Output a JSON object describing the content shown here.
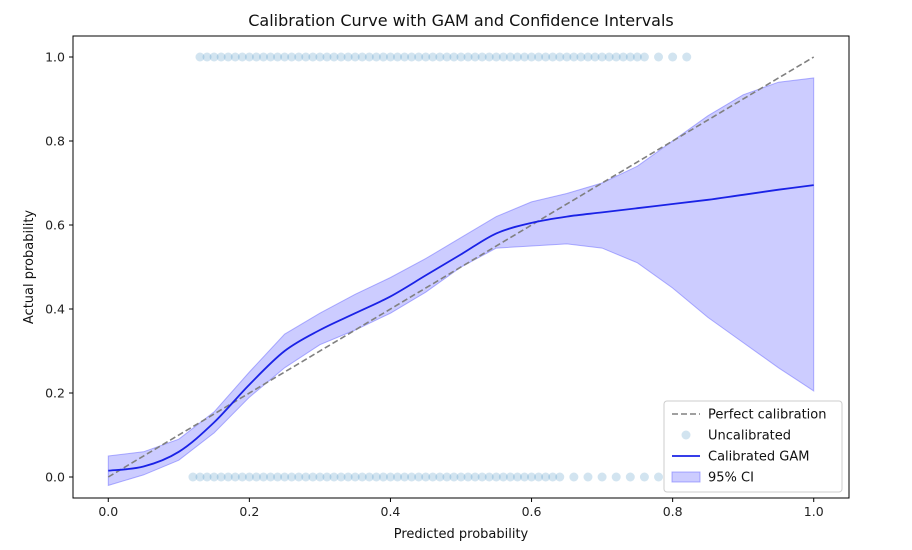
{
  "chart_data": {
    "type": "line",
    "title": "Calibration Curve with GAM and Confidence Intervals",
    "xlabel": "Predicted probability",
    "ylabel": "Actual probability",
    "xlim": [
      -0.05,
      1.05
    ],
    "ylim": [
      -0.05,
      1.05
    ],
    "xticks": [
      0.0,
      0.2,
      0.4,
      0.6,
      0.8,
      1.0
    ],
    "yticks": [
      0.0,
      0.2,
      0.4,
      0.6,
      0.8,
      1.0
    ],
    "xtick_labels": [
      "0.0",
      "0.2",
      "0.4",
      "0.6",
      "0.8",
      "1.0"
    ],
    "ytick_labels": [
      "0.0",
      "0.2",
      "0.4",
      "0.6",
      "0.8",
      "1.0"
    ],
    "grid": false,
    "legend_position": "lower-right",
    "colors": {
      "perfect": "#808080",
      "scatter": "#1f77b4",
      "gam": "#1a22e6",
      "ci_fill": "#8080ff",
      "ci_edge": "#6666ff"
    },
    "series": [
      {
        "name": "Perfect calibration",
        "kind": "dashed-line",
        "x": [
          0.0,
          1.0
        ],
        "y": [
          0.0,
          1.0
        ]
      },
      {
        "name": "Uncalibrated",
        "kind": "scatter",
        "alpha": 0.2,
        "points_y1": [
          0.13,
          0.14,
          0.15,
          0.16,
          0.17,
          0.18,
          0.19,
          0.2,
          0.21,
          0.22,
          0.23,
          0.24,
          0.25,
          0.26,
          0.27,
          0.28,
          0.29,
          0.3,
          0.31,
          0.32,
          0.33,
          0.34,
          0.35,
          0.36,
          0.37,
          0.38,
          0.39,
          0.4,
          0.41,
          0.42,
          0.43,
          0.44,
          0.45,
          0.46,
          0.47,
          0.48,
          0.49,
          0.5,
          0.51,
          0.52,
          0.53,
          0.54,
          0.55,
          0.56,
          0.57,
          0.58,
          0.59,
          0.6,
          0.61,
          0.62,
          0.63,
          0.64,
          0.65,
          0.66,
          0.67,
          0.68,
          0.69,
          0.7,
          0.71,
          0.72,
          0.73,
          0.74,
          0.75,
          0.76,
          0.78,
          0.8,
          0.82
        ],
        "points_y0": [
          0.12,
          0.13,
          0.14,
          0.15,
          0.16,
          0.17,
          0.18,
          0.19,
          0.2,
          0.21,
          0.22,
          0.23,
          0.24,
          0.25,
          0.26,
          0.27,
          0.28,
          0.29,
          0.3,
          0.31,
          0.32,
          0.33,
          0.34,
          0.35,
          0.36,
          0.37,
          0.38,
          0.39,
          0.4,
          0.41,
          0.42,
          0.43,
          0.44,
          0.45,
          0.46,
          0.47,
          0.48,
          0.49,
          0.5,
          0.51,
          0.52,
          0.53,
          0.54,
          0.55,
          0.56,
          0.57,
          0.58,
          0.59,
          0.6,
          0.61,
          0.62,
          0.63,
          0.64,
          0.66,
          0.68,
          0.7,
          0.72,
          0.74,
          0.76,
          0.78
        ]
      },
      {
        "name": "Calibrated GAM",
        "kind": "line",
        "x": [
          0.0,
          0.05,
          0.1,
          0.15,
          0.2,
          0.25,
          0.3,
          0.35,
          0.4,
          0.45,
          0.5,
          0.55,
          0.6,
          0.65,
          0.7,
          0.75,
          0.8,
          0.85,
          0.9,
          0.95,
          1.0
        ],
        "y": [
          0.015,
          0.025,
          0.06,
          0.13,
          0.22,
          0.3,
          0.35,
          0.39,
          0.43,
          0.48,
          0.53,
          0.58,
          0.605,
          0.62,
          0.63,
          0.64,
          0.65,
          0.66,
          0.672,
          0.684,
          0.695
        ]
      },
      {
        "name": "95% CI",
        "kind": "band",
        "x": [
          0.0,
          0.05,
          0.1,
          0.15,
          0.2,
          0.25,
          0.3,
          0.35,
          0.4,
          0.45,
          0.5,
          0.55,
          0.6,
          0.65,
          0.7,
          0.75,
          0.8,
          0.85,
          0.9,
          0.95,
          1.0
        ],
        "lower": [
          -0.02,
          0.005,
          0.04,
          0.105,
          0.19,
          0.26,
          0.315,
          0.35,
          0.39,
          0.44,
          0.5,
          0.545,
          0.55,
          0.555,
          0.545,
          0.51,
          0.45,
          0.38,
          0.32,
          0.26,
          0.205
        ],
        "upper": [
          0.05,
          0.06,
          0.09,
          0.155,
          0.25,
          0.34,
          0.39,
          0.435,
          0.475,
          0.52,
          0.57,
          0.62,
          0.655,
          0.675,
          0.7,
          0.74,
          0.8,
          0.86,
          0.91,
          0.94,
          0.95
        ]
      }
    ]
  }
}
